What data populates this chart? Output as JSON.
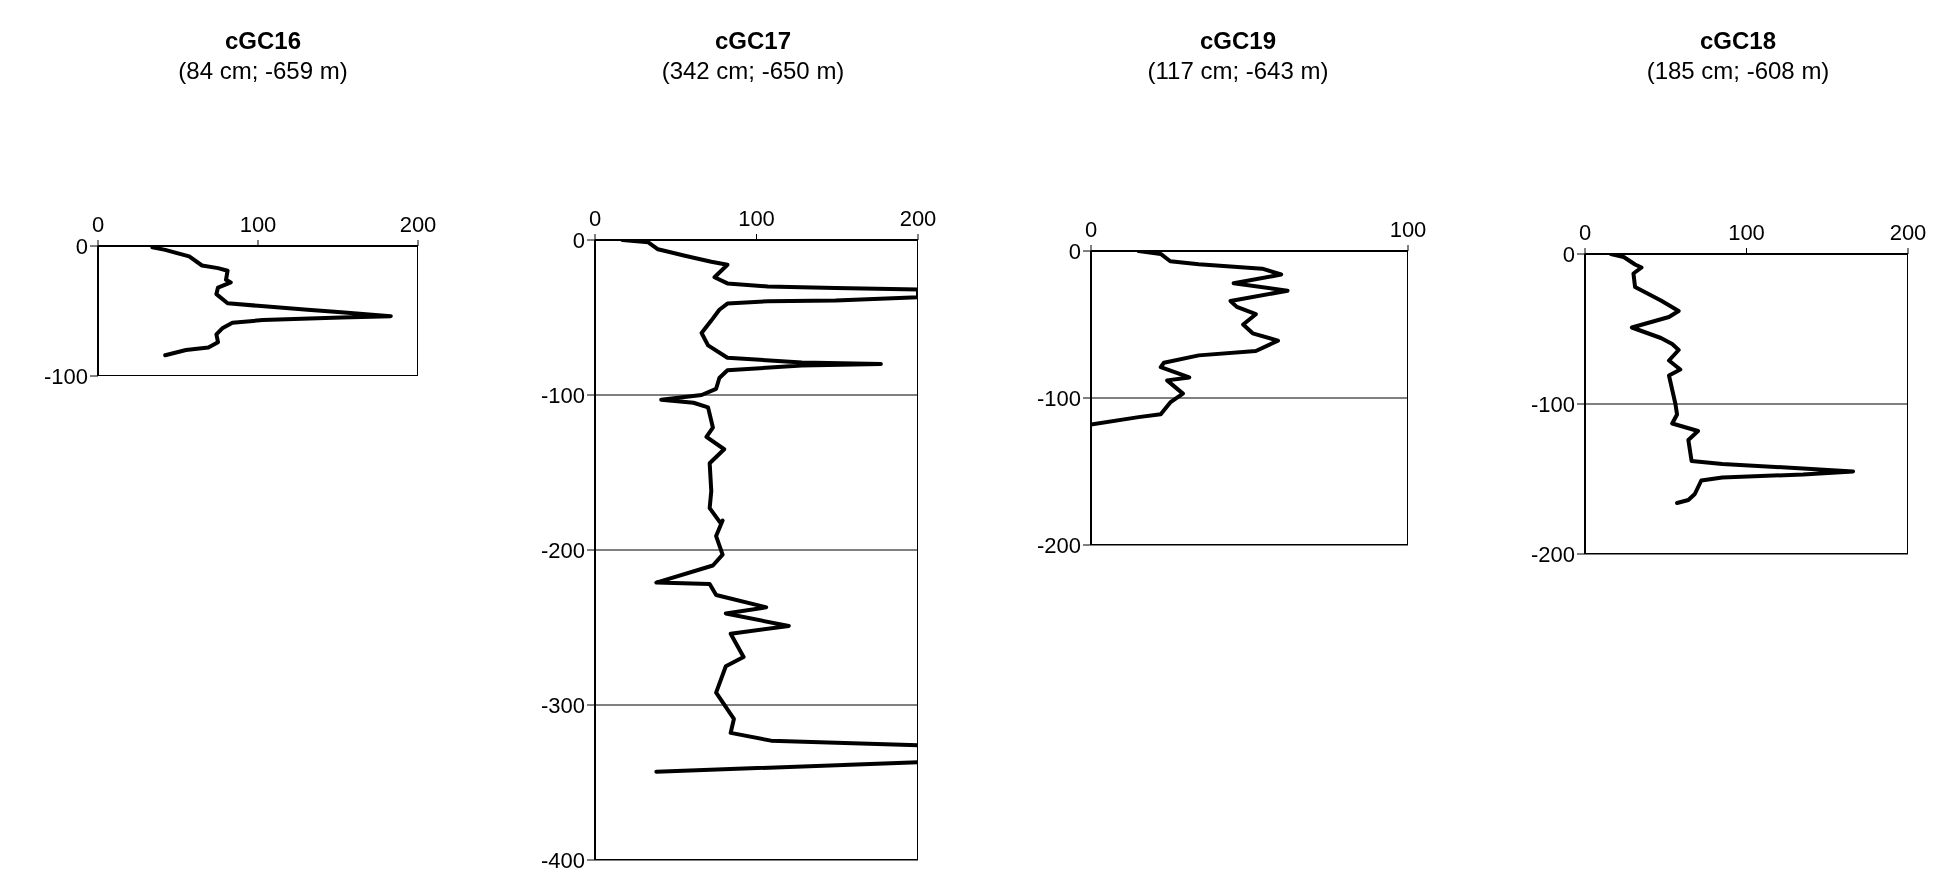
{
  "chart_data": [
    {
      "type": "line",
      "title": "cGC16",
      "subtitle": "(84 cm; -659 m)",
      "xlim": [
        0,
        200
      ],
      "xticks": [
        0,
        100,
        200
      ],
      "ylim": [
        -100,
        0
      ],
      "yticks": [
        -100,
        0
      ],
      "series": [
        {
          "color": "#000000",
          "x": [
            34,
            42,
            57,
            65,
            75,
            81,
            80,
            83,
            75,
            74,
            81,
            100,
            131,
            152,
            183,
            152,
            103,
            84,
            78,
            74,
            75,
            69,
            55,
            42
          ],
          "values": [
            -1,
            -3,
            -8,
            -15,
            -17,
            -19,
            -26,
            -28,
            -32,
            -37,
            -44,
            -46,
            -49,
            -51,
            -54,
            -55,
            -57,
            -59,
            -63,
            -68,
            -74,
            -78,
            -80,
            -84
          ]
        }
      ]
    },
    {
      "type": "line",
      "title": "cGC17",
      "subtitle": "(342 cm; -650 m)",
      "xlim": [
        0,
        200
      ],
      "xticks": [
        0,
        100,
        200
      ],
      "ylim": [
        -400,
        0
      ],
      "yticks": [
        -400,
        -300,
        -200,
        -100,
        0
      ],
      "grid": "y",
      "series": [
        {
          "color": "#000000",
          "x": [
            17,
            33,
            39,
            55,
            72,
            82,
            74,
            82,
            107,
            149,
            200,
            200,
            149,
            107,
            82,
            77,
            72,
            66,
            70,
            82,
            128,
            177,
            128,
            82,
            77,
            75,
            66,
            41,
            61,
            70,
            73,
            69,
            80,
            71,
            72,
            71,
            78,
            79,
            75,
            79,
            73,
            38,
            71,
            75,
            106,
            81,
            120,
            84,
            92,
            81,
            75,
            86,
            84,
            109,
            200
          ],
          "values": [
            0,
            -1.5,
            -6,
            -10,
            -14,
            -16,
            -24,
            -28,
            -30,
            -31,
            -32,
            -37,
            -39,
            -39.5,
            -41,
            -45,
            -52,
            -60,
            -68,
            -76,
            -79,
            -80,
            -81,
            -84,
            -89,
            -96,
            -100,
            -103,
            -105,
            -108,
            -121,
            -127,
            -135,
            -144,
            -162,
            -173,
            -183,
            -181,
            -191,
            -203,
            -210,
            -221,
            -222,
            -229,
            -237,
            -241,
            -249,
            -254,
            -269,
            -275,
            -292,
            -309,
            -318,
            -323,
            -326
          ]
        },
        {
          "color": "#000000",
          "x": [
            200,
            38
          ],
          "values": [
            -337,
            -343
          ]
        }
      ]
    },
    {
      "type": "line",
      "title": "cGC19",
      "subtitle": "(117 cm; -643 m)",
      "xlim": [
        0,
        100
      ],
      "xticks": [
        0,
        100
      ],
      "ylim": [
        -200,
        0
      ],
      "yticks": [
        -200,
        -100,
        0
      ],
      "grid": "y",
      "series": [
        {
          "color": "#000000",
          "x": [
            15,
            22,
            25,
            34,
            54,
            60,
            45,
            62,
            44,
            46,
            52,
            48,
            51,
            59,
            52,
            34,
            23,
            22,
            31,
            24,
            29,
            25,
            22,
            15,
            0
          ],
          "values": [
            0,
            -2,
            -7,
            -9,
            -12,
            -16,
            -22,
            -27,
            -34,
            -38,
            -43,
            -50,
            -56,
            -61,
            -68,
            -71,
            -76,
            -79,
            -86,
            -88,
            -97,
            -103,
            -111,
            -113,
            -118
          ]
        }
      ]
    },
    {
      "type": "line",
      "title": "cGC18",
      "subtitle": "(185 cm; -608 m)",
      "xlim": [
        0,
        200
      ],
      "xticks": [
        0,
        100,
        200
      ],
      "ylim": [
        -200,
        0
      ],
      "yticks": [
        -200,
        -100,
        0
      ],
      "grid": "y",
      "series": [
        {
          "color": "#000000",
          "x": [
            16,
            24,
            31,
            35,
            30,
            31,
            47,
            58,
            52,
            29,
            47,
            54,
            58,
            52,
            59,
            52,
            56,
            57,
            54,
            70,
            64,
            66,
            85,
            135,
            166,
            135,
            85,
            72,
            68,
            64,
            57
          ],
          "values": [
            0,
            -2,
            -7,
            -9,
            -13,
            -22,
            -31,
            -38,
            -42,
            -49,
            -56,
            -60,
            -64,
            -71,
            -77,
            -81,
            -100,
            -107,
            -113,
            -118,
            -124,
            -138,
            -140,
            -143,
            -145,
            -147,
            -149,
            -151,
            -160,
            -164,
            -166
          ]
        }
      ]
    }
  ]
}
